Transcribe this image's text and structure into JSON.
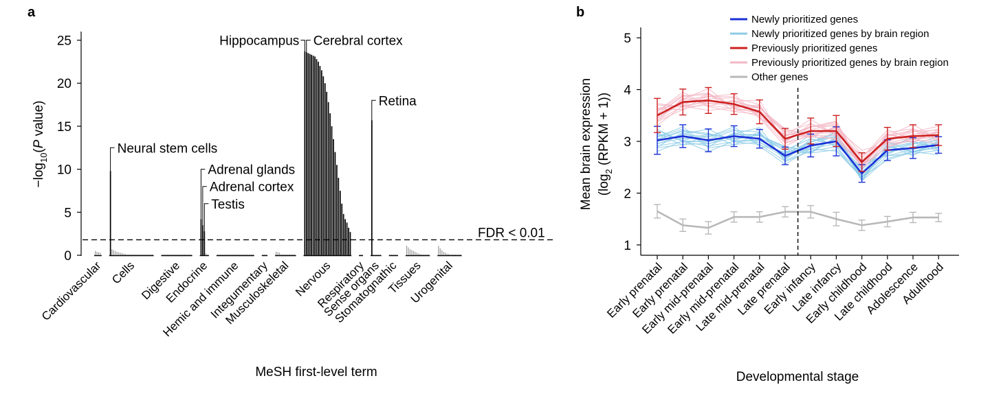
{
  "panels": {
    "a": "a",
    "b": "b"
  },
  "chart_data": [
    {
      "type": "bar",
      "panel": "a",
      "xlabel": "MeSH first-level term",
      "ylabel_parts": [
        "−log",
        "10",
        "(",
        "P",
        " value)"
      ],
      "ylim": [
        0,
        26
      ],
      "yticks": [
        0,
        5,
        10,
        15,
        20,
        25
      ],
      "threshold": {
        "value": 1.8,
        "label": "FDR < 0.01"
      },
      "categories": [
        {
          "name": "Cardiovascular",
          "values": [
            0.5,
            0.4,
            0.35,
            0.3
          ]
        },
        {
          "name": "Cells",
          "values": [
            9.8,
            0.7,
            0.6,
            0.5,
            0.4,
            0.35,
            0.3,
            0.25,
            0.2,
            0.15,
            0.1,
            0.1,
            0.1,
            0.1,
            0.1,
            0.1,
            0.1,
            0.1,
            0.1,
            0.1,
            0.1,
            0.1,
            0.1,
            0.1,
            0.1,
            0.1
          ]
        },
        {
          "name": "Digestive",
          "values": [
            0.1,
            0.1,
            0.1,
            0.1,
            0.1,
            0.1,
            0.1,
            0.1,
            0.1,
            0.1,
            0.1,
            0.1,
            0.1,
            0.1,
            0.1,
            0.1,
            0.1,
            0.1
          ]
        },
        {
          "name": "Endocrine",
          "values": [
            4.2,
            3.5,
            2.8,
            0.2,
            0.1
          ]
        },
        {
          "name": "Hemic and immune",
          "values": [
            0.1,
            0.1,
            0.1,
            0.1,
            0.1,
            0.1,
            0.1,
            0.1,
            0.1,
            0.1,
            0.1,
            0.1,
            0.1,
            0.1,
            0.1,
            0.1,
            0.1,
            0.1,
            0.1,
            0.1,
            0.1,
            0.1
          ]
        },
        {
          "name": "Integumentary",
          "values": [
            0.1,
            0.1,
            0.1
          ]
        },
        {
          "name": "Musculoskeletal",
          "values": [
            0.4,
            0.35,
            0.3,
            0.1,
            0.1,
            0.1,
            0.1,
            0.1,
            0.1,
            0.1,
            0.1,
            0.1
          ]
        },
        {
          "name": "Nervous",
          "values": [
            23.7,
            23.6,
            23.5,
            23.4,
            23.3,
            23.2,
            23.1,
            22.8,
            22.5,
            22.0,
            21.5,
            20.8,
            20.0,
            19.0,
            17.8,
            16.5,
            15.0,
            13.5,
            12.0,
            10.5,
            9.0,
            7.5,
            6.0,
            4.8,
            4.2,
            3.8,
            3.2,
            2.7
          ]
        },
        {
          "name": "Respiratory",
          "values": [
            0.1,
            0.1
          ]
        },
        {
          "name": "Sense organs",
          "values": [
            15.7,
            0.1,
            0.1,
            0.1,
            0.1,
            0.1
          ]
        },
        {
          "name": "Stomatognathic",
          "values": [
            0.1,
            0.1,
            0.1,
            0.1,
            0.1
          ]
        },
        {
          "name": "Tissues",
          "values": [
            1.1,
            0.9,
            0.7,
            0.6,
            0.5,
            0.4,
            0.3,
            0.2,
            0.15,
            0.1,
            0.1,
            0.1,
            0.1,
            0.1
          ]
        },
        {
          "name": "Urogenital",
          "values": [
            1.1,
            0.8,
            0.6,
            0.4,
            0.3,
            0.2,
            0.15,
            0.1,
            0.1,
            0.1,
            0.1,
            0.1,
            0.1,
            0.1
          ]
        }
      ],
      "annotations": [
        {
          "text": "Neural stem cells",
          "category": "Cells",
          "index": 0,
          "value": 12.5
        },
        {
          "text": "Adrenal glands",
          "category": "Endocrine",
          "index": 0,
          "value": 10.0
        },
        {
          "text": "Adrenal cortex",
          "category": "Endocrine",
          "index": 1,
          "value": 8.0
        },
        {
          "text": "Testis",
          "category": "Endocrine",
          "index": 2,
          "value": 6.0
        },
        {
          "text": "Hippocampus",
          "category": "Nervous",
          "index": 0,
          "value": 25.0,
          "side": "left"
        },
        {
          "text": "Cerebral cortex",
          "category": "Nervous",
          "index": 1,
          "value": 25.0
        },
        {
          "text": "Retina",
          "category": "Sense organs",
          "index": 0,
          "value": 18.0
        }
      ]
    },
    {
      "type": "line",
      "panel": "b",
      "xlabel": "Developmental stage",
      "ylabel_line1": "Mean brain expression",
      "ylabel_line2_parts": [
        "(log",
        "2",
        " (RPKM + 1))"
      ],
      "ylim": [
        0.8,
        5.2
      ],
      "yticks": [
        1,
        2,
        3,
        4,
        5
      ],
      "categories": [
        "Early prenatal",
        "Early prenatal",
        "Early mid-prenatal",
        "Early mid-prenatal",
        "Late mid-prenatal",
        "Late prenatal",
        "Early infancy",
        "Late infancy",
        "Early childhood",
        "Late childhood",
        "Adolescence",
        "Adulthood"
      ],
      "divider_after_index": 5,
      "series": [
        {
          "name": "Newly prioritized genes",
          "color": "#1a2fd6",
          "values": [
            3.02,
            3.1,
            3.02,
            3.1,
            3.05,
            2.72,
            2.92,
            3.0,
            2.38,
            2.83,
            2.87,
            2.93
          ],
          "err": [
            0.27,
            0.22,
            0.22,
            0.2,
            0.18,
            0.17,
            0.22,
            0.28,
            0.17,
            0.2,
            0.2,
            0.16
          ]
        },
        {
          "name": "Previously prioritized genes",
          "color": "#cc2020",
          "values": [
            3.5,
            3.76,
            3.79,
            3.72,
            3.57,
            3.05,
            3.2,
            3.2,
            2.6,
            3.05,
            3.1,
            3.12
          ],
          "err": [
            0.33,
            0.25,
            0.25,
            0.2,
            0.23,
            0.2,
            0.25,
            0.3,
            0.18,
            0.22,
            0.22,
            0.2
          ]
        },
        {
          "name": "Other genes",
          "color": "#b8b8b8",
          "values": [
            1.65,
            1.38,
            1.33,
            1.54,
            1.54,
            1.64,
            1.64,
            1.5,
            1.38,
            1.45,
            1.53,
            1.53
          ],
          "err": [
            0.13,
            0.12,
            0.12,
            0.1,
            0.1,
            0.1,
            0.12,
            0.13,
            0.1,
            0.1,
            0.1,
            0.08
          ]
        }
      ],
      "region_series": [
        {
          "group": "Newly prioritized genes by brain region",
          "color": "#8ccbe6",
          "offsets": [
            -0.18,
            -0.1,
            -0.04,
            0.03,
            0.09,
            0.15,
            -0.14,
            0.12,
            -0.07,
            0.06,
            0.18,
            -0.12
          ]
        },
        {
          "group": "Previously prioritized genes by brain region",
          "color": "#f3b7c6",
          "offsets": [
            -0.16,
            -0.08,
            -0.03,
            0.04,
            0.1,
            0.16,
            -0.12,
            0.13,
            -0.06,
            0.07,
            0.19,
            -0.1
          ]
        }
      ],
      "legend": [
        {
          "label": "Newly prioritized genes",
          "color": "#1a2fd6"
        },
        {
          "label": "Newly prioritized genes by brain region",
          "color": "#8ccbe6"
        },
        {
          "label": "Previously prioritized genes",
          "color": "#cc2020"
        },
        {
          "label": "Previously prioritized genes by brain region",
          "color": "#f3b7c6"
        },
        {
          "label": "Other genes",
          "color": "#b8b8b8"
        }
      ],
      "legend_position": "top-right"
    }
  ]
}
